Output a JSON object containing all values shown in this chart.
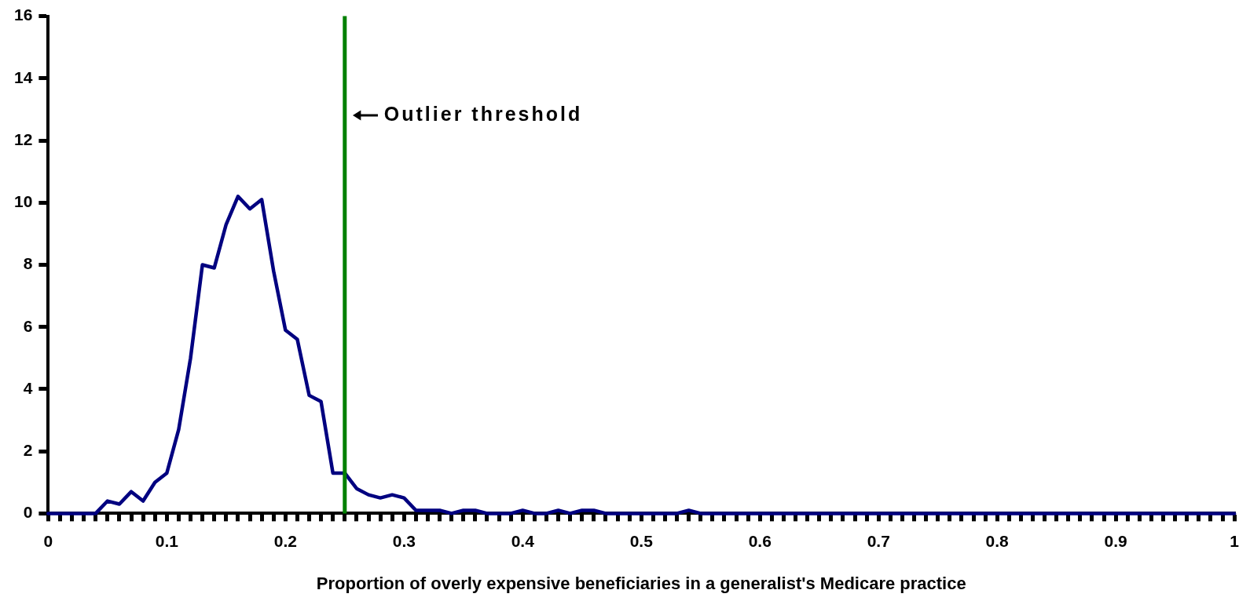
{
  "chart_data": {
    "type": "line",
    "xlabel": "Proportion of overly expensive beneficiaries in a generalist's Medicare practice",
    "grid": false,
    "legend": false,
    "marker": "none",
    "line_style": "solid",
    "x": [
      0,
      0.01,
      0.02,
      0.03,
      0.04,
      0.05,
      0.06,
      0.07,
      0.08,
      0.09,
      0.1,
      0.11,
      0.12,
      0.13,
      0.14,
      0.15,
      0.16,
      0.17,
      0.18,
      0.19,
      0.2,
      0.21,
      0.22,
      0.23,
      0.24,
      0.25,
      0.26,
      0.27,
      0.28,
      0.29,
      0.3,
      0.31,
      0.32,
      0.33,
      0.34,
      0.35,
      0.36,
      0.37,
      0.38,
      0.39,
      0.4,
      0.41,
      0.42,
      0.43,
      0.44,
      0.45,
      0.46,
      0.47,
      0.48,
      0.49,
      0.5,
      0.51,
      0.52,
      0.53,
      0.54,
      0.55,
      0.56,
      0.57,
      0.58,
      0.59,
      0.6,
      0.61,
      0.62,
      0.63,
      0.64,
      0.65,
      0.66,
      0.67,
      0.68,
      0.69,
      0.7,
      0.71,
      0.72,
      0.73,
      0.74,
      0.75,
      0.76,
      0.77,
      0.78,
      0.79,
      0.8,
      0.81,
      0.82,
      0.83,
      0.84,
      0.85,
      0.86,
      0.87,
      0.88,
      0.89,
      0.9,
      0.91,
      0.92,
      0.93,
      0.94,
      0.95,
      0.96,
      0.97,
      0.98,
      0.99,
      1
    ],
    "series": [
      {
        "color": "#000080",
        "values": [
          0,
          0,
          0,
          0,
          0,
          0.4,
          0.3,
          0.7,
          0.4,
          1.0,
          1.3,
          2.7,
          5.0,
          8.0,
          7.9,
          9.3,
          10.2,
          9.8,
          10.1,
          7.8,
          5.9,
          5.6,
          3.8,
          3.6,
          1.3,
          1.3,
          0.8,
          0.6,
          0.5,
          0.6,
          0.5,
          0.1,
          0.1,
          0.1,
          0,
          0.1,
          0.1,
          0,
          0,
          0,
          0.1,
          0,
          0,
          0.1,
          0,
          0.1,
          0.1,
          0,
          0,
          0,
          0,
          0,
          0,
          0,
          0.1,
          0,
          0,
          0,
          0,
          0,
          0,
          0,
          0,
          0,
          0,
          0,
          0,
          0,
          0,
          0,
          0,
          0,
          0,
          0,
          0,
          0,
          0,
          0,
          0,
          0,
          0,
          0,
          0,
          0,
          0,
          0,
          0,
          0,
          0,
          0,
          0,
          0,
          0,
          0,
          0,
          0,
          0,
          0,
          0,
          0,
          0
        ]
      }
    ],
    "xlim": [
      0,
      1
    ],
    "xticks": [
      0,
      {
        "value": 0.01,
        "label": null
      },
      {
        "value": 0.02,
        "label": null
      },
      {
        "value": 0.03,
        "label": null
      },
      {
        "value": 0.04,
        "label": null
      },
      {
        "value": 0.05,
        "label": null
      },
      {
        "value": 0.06,
        "label": null
      },
      {
        "value": 0.07,
        "label": null
      },
      {
        "value": 0.08,
        "label": null
      },
      {
        "value": 0.09,
        "label": null
      },
      0.1,
      {
        "value": 0.11,
        "label": null
      },
      {
        "value": 0.12,
        "label": null
      },
      {
        "value": 0.13,
        "label": null
      },
      {
        "value": 0.14,
        "label": null
      },
      {
        "value": 0.15,
        "label": null
      },
      {
        "value": 0.16,
        "label": null
      },
      {
        "value": 0.17,
        "label": null
      },
      {
        "value": 0.18,
        "label": null
      },
      {
        "value": 0.19,
        "label": null
      },
      0.2,
      {
        "value": 0.21,
        "label": null
      },
      {
        "value": 0.22,
        "label": null
      },
      {
        "value": 0.23,
        "label": null
      },
      {
        "value": 0.24,
        "label": null
      },
      {
        "value": 0.25,
        "label": null
      },
      {
        "value": 0.26,
        "label": null
      },
      {
        "value": 0.27,
        "label": null
      },
      {
        "value": 0.28,
        "label": null
      },
      {
        "value": 0.29,
        "label": null
      },
      0.3,
      {
        "value": 0.31,
        "label": null
      },
      {
        "value": 0.32,
        "label": null
      },
      {
        "value": 0.33,
        "label": null
      },
      {
        "value": 0.34,
        "label": null
      },
      {
        "value": 0.35,
        "label": null
      },
      {
        "value": 0.36,
        "label": null
      },
      {
        "value": 0.37,
        "label": null
      },
      {
        "value": 0.38,
        "label": null
      },
      {
        "value": 0.39,
        "label": null
      },
      0.4,
      {
        "value": 0.41,
        "label": null
      },
      {
        "value": 0.42,
        "label": null
      },
      {
        "value": 0.43,
        "label": null
      },
      {
        "value": 0.44,
        "label": null
      },
      {
        "value": 0.45,
        "label": null
      },
      {
        "value": 0.46,
        "label": null
      },
      {
        "value": 0.47,
        "label": null
      },
      {
        "value": 0.48,
        "label": null
      },
      {
        "value": 0.49,
        "label": null
      },
      0.5,
      {
        "value": 0.51,
        "label": null
      },
      {
        "value": 0.52,
        "label": null
      },
      {
        "value": 0.53,
        "label": null
      },
      {
        "value": 0.54,
        "label": null
      },
      {
        "value": 0.55,
        "label": null
      },
      {
        "value": 0.56,
        "label": null
      },
      {
        "value": 0.57,
        "label": null
      },
      {
        "value": 0.58,
        "label": null
      },
      {
        "value": 0.59,
        "label": null
      },
      0.6,
      {
        "value": 0.61,
        "label": null
      },
      {
        "value": 0.62,
        "label": null
      },
      {
        "value": 0.63,
        "label": null
      },
      {
        "value": 0.64,
        "label": null
      },
      {
        "value": 0.65,
        "label": null
      },
      {
        "value": 0.66,
        "label": null
      },
      {
        "value": 0.67,
        "label": null
      },
      {
        "value": 0.68,
        "label": null
      },
      {
        "value": 0.69,
        "label": null
      },
      0.7,
      {
        "value": 0.71,
        "label": null
      },
      {
        "value": 0.72,
        "label": null
      },
      {
        "value": 0.73,
        "label": null
      },
      {
        "value": 0.74,
        "label": null
      },
      {
        "value": 0.75,
        "label": null
      },
      {
        "value": 0.76,
        "label": null
      },
      {
        "value": 0.77,
        "label": null
      },
      {
        "value": 0.78,
        "label": null
      },
      {
        "value": 0.79,
        "label": null
      },
      0.8,
      {
        "value": 0.81,
        "label": null
      },
      {
        "value": 0.82,
        "label": null
      },
      {
        "value": 0.83,
        "label": null
      },
      {
        "value": 0.84,
        "label": null
      },
      {
        "value": 0.85,
        "label": null
      },
      {
        "value": 0.86,
        "label": null
      },
      {
        "value": 0.87,
        "label": null
      },
      {
        "value": 0.88,
        "label": null
      },
      {
        "value": 0.89,
        "label": null
      },
      0.9,
      {
        "value": 0.91,
        "label": null
      },
      {
        "value": 0.92,
        "label": null
      },
      {
        "value": 0.93,
        "label": null
      },
      {
        "value": 0.94,
        "label": null
      },
      {
        "value": 0.95,
        "label": null
      },
      {
        "value": 0.96,
        "label": null
      },
      {
        "value": 0.97,
        "label": null
      },
      {
        "value": 0.98,
        "label": null
      },
      {
        "value": 0.99,
        "label": null
      },
      1
    ],
    "ylim": [
      0,
      16
    ],
    "yticks": [
      0,
      2,
      4,
      6,
      8,
      10,
      12,
      14,
      16
    ],
    "ref_lines": [
      {
        "axis": "x",
        "value": 0.25,
        "label": "Outlier threshold",
        "color": "#008000",
        "line_style": "solid"
      }
    ]
  }
}
